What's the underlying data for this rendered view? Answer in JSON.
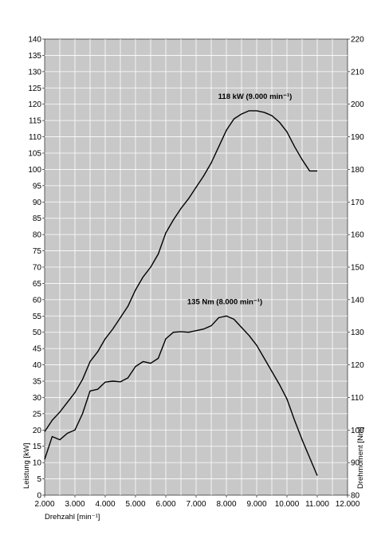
{
  "chart_data": {
    "type": "line",
    "title": "",
    "x": [
      2000,
      2250,
      2500,
      2750,
      3000,
      3250,
      3500,
      3750,
      4000,
      4250,
      4500,
      4750,
      5000,
      5250,
      5500,
      5750,
      6000,
      6250,
      6500,
      6750,
      7000,
      7250,
      7500,
      7750,
      8000,
      8250,
      8500,
      8750,
      9000,
      9250,
      9500,
      9750,
      10000,
      10250,
      10500,
      10750,
      11000
    ],
    "xlabel": "Drehzahl [min⁻¹]",
    "xlim": [
      2000,
      12000
    ],
    "x_ticks": [
      "2.000",
      "3.000",
      "4.000",
      "5.000",
      "6.000",
      "7.000",
      "8.000",
      "9.000",
      "10.000",
      "11.000",
      "12.000"
    ],
    "ylabel_left": "Leistung [kW]",
    "ylim_left": [
      0,
      140
    ],
    "ylabel_right": "Drehmoment [Nm]",
    "ylim_right": [
      80,
      220
    ],
    "grid": true,
    "series": [
      {
        "axis": "left",
        "color": "#000000",
        "values": [
          19.5,
          23,
          25.5,
          28.5,
          31.5,
          35.5,
          41,
          44,
          48,
          51,
          54.5,
          58,
          63,
          67,
          70,
          74,
          80.5,
          84.5,
          88,
          91,
          94.5,
          98,
          102,
          107,
          112,
          115.5,
          117,
          118,
          118,
          117.5,
          116.5,
          114.5,
          111.5,
          107,
          103,
          99.5,
          99.5
        ]
      },
      {
        "axis": "right",
        "color": "#000000",
        "x": [
          2000,
          2250,
          2500,
          2750,
          3000,
          3250,
          3500,
          3750,
          4000,
          4250,
          4500,
          4750,
          5000,
          5250,
          5500,
          5750,
          6000,
          6250,
          6500,
          6750,
          7000,
          7250,
          7500,
          7750,
          8000,
          8250,
          8500,
          8750,
          9000,
          9250,
          9500,
          9750,
          10000,
          10250,
          10500,
          10750,
          11000
        ],
        "values": [
          91,
          98,
          97,
          99,
          100,
          105,
          112,
          112.5,
          114.7,
          115,
          114.8,
          116,
          119.5,
          121,
          120.5,
          122,
          128,
          130,
          130.2,
          130,
          130.5,
          131,
          132,
          134.5,
          135,
          134,
          131.5,
          129,
          126,
          122,
          118,
          114,
          109.5,
          103,
          97,
          91.5,
          86
        ]
      }
    ],
    "annotations": [
      {
        "text": "118 kW (9.000 min⁻¹)",
        "x": 9000,
        "y": 118,
        "axis": "left"
      },
      {
        "text": "135 Nm (8.000 min⁻¹)",
        "x": 8000,
        "y": 135,
        "axis": "right"
      }
    ]
  }
}
